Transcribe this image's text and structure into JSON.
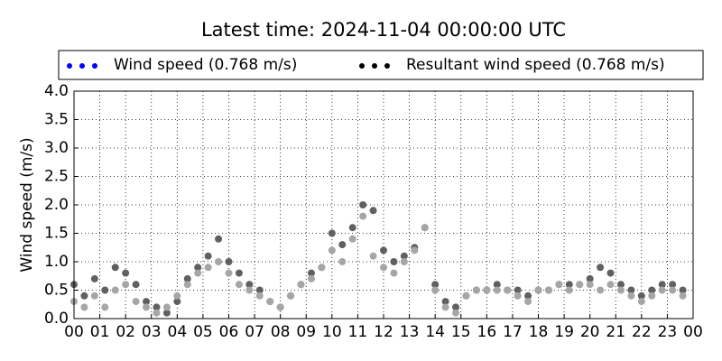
{
  "chart_data": {
    "type": "scatter",
    "title": "Latest time: 2024-11-04 00:00:00 UTC",
    "y_label": "Wind speed (m/s)",
    "x": [
      0,
      0.4,
      0.8,
      1.2,
      1.6,
      2,
      2.4,
      2.8,
      3.2,
      3.6,
      4,
      4.4,
      4.8,
      5.2,
      5.6,
      6,
      6.4,
      6.8,
      7.2,
      7.6,
      8,
      8.4,
      8.8,
      9.2,
      9.6,
      10,
      10.4,
      10.8,
      11.2,
      11.6,
      12,
      12.4,
      12.8,
      13.2,
      13.6,
      14,
      14.4,
      14.8,
      15.2,
      15.6,
      16,
      16.4,
      16.8,
      17.2,
      17.6,
      18,
      18.4,
      18.8,
      19.2,
      19.6,
      20,
      20.4,
      20.8,
      21.2,
      21.6,
      22,
      22.4,
      22.8,
      23.2,
      23.6
    ],
    "series": [
      {
        "name": "Wind speed (0.768 m/s)",
        "color": "#0000ff",
        "marker_color": "#a6a6a6",
        "values": [
          0.3,
          0.2,
          0.4,
          0.2,
          0.5,
          0.6,
          0.3,
          0.2,
          0.1,
          0.2,
          0.4,
          0.6,
          0.8,
          0.9,
          1.0,
          0.8,
          0.6,
          0.5,
          0.4,
          0.3,
          0.2,
          0.4,
          0.6,
          0.7,
          0.9,
          1.2,
          1.0,
          1.4,
          1.8,
          1.1,
          0.9,
          0.8,
          1.0,
          1.2,
          1.6,
          0.5,
          0.2,
          0.1,
          0.4,
          0.5,
          0.5,
          0.5,
          0.5,
          0.4,
          0.3,
          0.5,
          0.5,
          0.6,
          0.5,
          0.6,
          0.6,
          0.5,
          0.6,
          0.5,
          0.4,
          0.3,
          0.4,
          0.5,
          0.5,
          0.4
        ]
      },
      {
        "name": "Resultant wind speed (0.768 m/s)",
        "color": "#000000",
        "marker_color": "#606060",
        "values": [
          0.6,
          0.4,
          0.7,
          0.5,
          0.9,
          0.8,
          0.6,
          0.3,
          0.2,
          0.1,
          0.3,
          0.7,
          0.9,
          1.1,
          1.4,
          1.0,
          0.8,
          0.6,
          0.5,
          0.3,
          0.2,
          0.4,
          0.6,
          0.8,
          0.9,
          1.5,
          1.3,
          1.6,
          2.0,
          1.9,
          1.2,
          1.0,
          1.1,
          1.25,
          1.6,
          0.6,
          0.3,
          0.2,
          0.4,
          0.5,
          0.5,
          0.6,
          0.5,
          0.5,
          0.4,
          0.5,
          0.5,
          0.6,
          0.6,
          0.6,
          0.7,
          0.9,
          0.8,
          0.6,
          0.5,
          0.4,
          0.5,
          0.6,
          0.6,
          0.5
        ]
      }
    ],
    "xlim": [
      0,
      24
    ],
    "xticks": [
      {
        "value": 0,
        "label": "00"
      },
      {
        "value": 1,
        "label": "01"
      },
      {
        "value": 2,
        "label": "02"
      },
      {
        "value": 3,
        "label": "03"
      },
      {
        "value": 4,
        "label": "04"
      },
      {
        "value": 5,
        "label": "05"
      },
      {
        "value": 6,
        "label": "06"
      },
      {
        "value": 7,
        "label": "07"
      },
      {
        "value": 8,
        "label": "08"
      },
      {
        "value": 9,
        "label": "09"
      },
      {
        "value": 10,
        "label": "10"
      },
      {
        "value": 11,
        "label": "11"
      },
      {
        "value": 12,
        "label": "12"
      },
      {
        "value": 13,
        "label": "13"
      },
      {
        "value": 14,
        "label": "14"
      },
      {
        "value": 15,
        "label": "15"
      },
      {
        "value": 16,
        "label": "16"
      },
      {
        "value": 17,
        "label": "17"
      },
      {
        "value": 18,
        "label": "18"
      },
      {
        "value": 19,
        "label": "19"
      },
      {
        "value": 20,
        "label": "20"
      },
      {
        "value": 21,
        "label": "21"
      },
      {
        "value": 22,
        "label": "22"
      },
      {
        "value": 23,
        "label": "23"
      },
      {
        "value": 24,
        "label": "00"
      }
    ],
    "ylim": [
      0,
      4
    ],
    "yticks": [
      {
        "value": 0,
        "label": "0.0"
      },
      {
        "value": 0.5,
        "label": "0.5"
      },
      {
        "value": 1,
        "label": "1.0"
      },
      {
        "value": 1.5,
        "label": "1.5"
      },
      {
        "value": 2,
        "label": "2.0"
      },
      {
        "value": 2.5,
        "label": "2.5"
      },
      {
        "value": 3,
        "label": "3.0"
      },
      {
        "value": 3.5,
        "label": "3.5"
      },
      {
        "value": 4,
        "label": "4.0"
      }
    ],
    "grid": true
  }
}
